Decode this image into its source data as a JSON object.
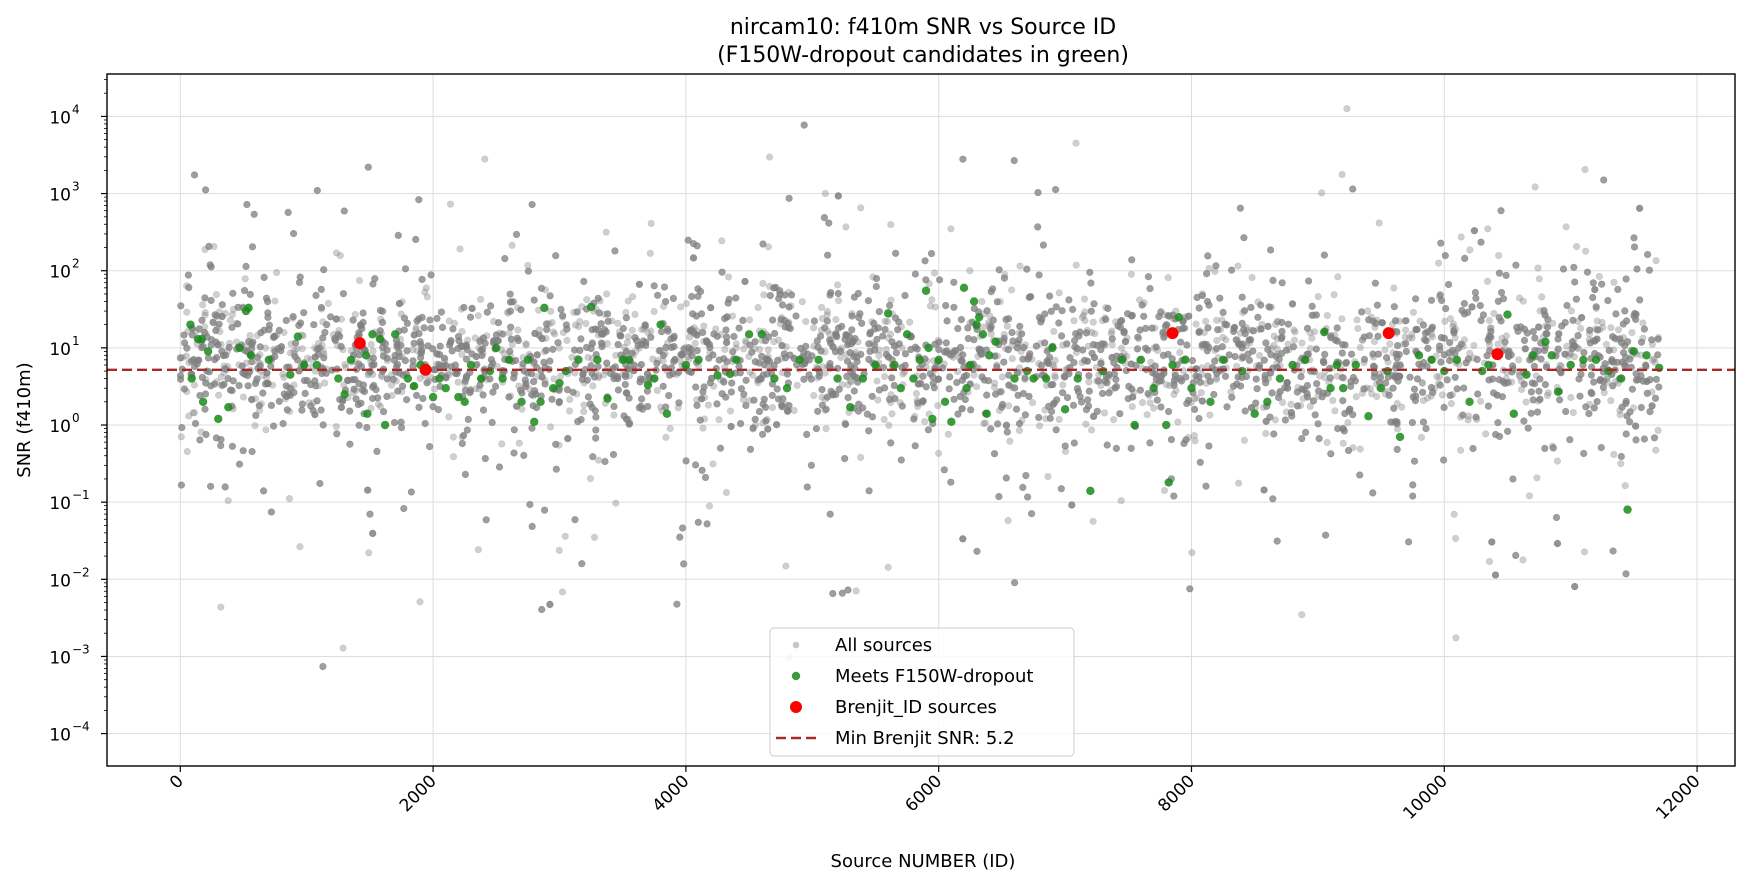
{
  "chart_data": {
    "type": "scatter",
    "title": "nircam10: f410m SNR vs Source ID",
    "subtitle": "(F150W-dropout candidates in green)",
    "xlabel": "Source NUMBER (ID)",
    "ylabel": "SNR (f410m)",
    "xlim": [
      -580,
      12300
    ],
    "ylim_log10": [
      -4.42,
      4.55
    ],
    "yscale": "log",
    "grid": true,
    "legend_position": "bottom-center",
    "x_ticks": [
      0,
      2000,
      4000,
      6000,
      8000,
      10000,
      12000
    ],
    "x_tick_labels": [
      "0",
      "2000",
      "4000",
      "6000",
      "8000",
      "10000",
      "12000"
    ],
    "y_ticks_log10": [
      -4,
      -3,
      -2,
      -1,
      0,
      1,
      2,
      3,
      4
    ],
    "y_tick_labels": [
      "10",
      "10",
      "10",
      "10",
      "10",
      "10",
      "10",
      "10",
      "10"
    ],
    "y_tick_exponents": [
      "−4",
      "−3",
      "−2",
      "−1",
      "0",
      "1",
      "2",
      "3",
      "4"
    ],
    "series": [
      {
        "name": "All sources",
        "color": "#808080",
        "description_only_density": "approx. 11700 sources spanning IDs 0–11700, SNR mostly 1–100 (log-normal around ~8)",
        "x_range": [
          0,
          11700
        ],
        "n_points_approx": 11700
      },
      {
        "name": "Meets F150W-dropout",
        "color": "#1a8a1a",
        "points": [
          [
            80,
            20
          ],
          [
            90,
            4
          ],
          [
            140,
            13
          ],
          [
            170,
            13
          ],
          [
            180,
            2
          ],
          [
            220,
            9
          ],
          [
            300,
            1.2
          ],
          [
            380,
            1.7
          ],
          [
            470,
            10
          ],
          [
            520,
            30
          ],
          [
            540,
            33
          ],
          [
            560,
            8
          ],
          [
            700,
            7
          ],
          [
            870,
            4.5
          ],
          [
            930,
            14
          ],
          [
            980,
            6
          ],
          [
            1080,
            6
          ],
          [
            1250,
            4
          ],
          [
            1300,
            2.5
          ],
          [
            1350,
            7
          ],
          [
            1470,
            8
          ],
          [
            1480,
            1.4
          ],
          [
            1520,
            15
          ],
          [
            1580,
            13
          ],
          [
            1620,
            1
          ],
          [
            1700,
            15
          ],
          [
            1800,
            4
          ],
          [
            1850,
            3.2
          ],
          [
            1900,
            6
          ],
          [
            2000,
            2.3
          ],
          [
            2050,
            4
          ],
          [
            2100,
            3
          ],
          [
            2200,
            2.3
          ],
          [
            2250,
            2
          ],
          [
            2300,
            6
          ],
          [
            2380,
            4
          ],
          [
            2450,
            5
          ],
          [
            2500,
            10
          ],
          [
            2550,
            4
          ],
          [
            2600,
            7
          ],
          [
            2700,
            2
          ],
          [
            2750,
            7
          ],
          [
            2800,
            1.1
          ],
          [
            2850,
            2
          ],
          [
            2880,
            33
          ],
          [
            2950,
            3
          ],
          [
            3000,
            3.5
          ],
          [
            3050,
            5
          ],
          [
            3150,
            7
          ],
          [
            3250,
            34
          ],
          [
            3300,
            7
          ],
          [
            3380,
            2.2
          ],
          [
            3500,
            7
          ],
          [
            3550,
            7
          ],
          [
            3700,
            3.3
          ],
          [
            3750,
            4
          ],
          [
            3800,
            20
          ],
          [
            3850,
            1.4
          ],
          [
            4000,
            6
          ],
          [
            4100,
            7
          ],
          [
            4250,
            4.4
          ],
          [
            4350,
            4.6
          ],
          [
            4400,
            7
          ],
          [
            4500,
            15
          ],
          [
            4600,
            15
          ],
          [
            4700,
            4
          ],
          [
            4800,
            3
          ],
          [
            4900,
            7
          ],
          [
            5050,
            7
          ],
          [
            5200,
            4
          ],
          [
            5300,
            1.7
          ],
          [
            5400,
            4
          ],
          [
            5500,
            6
          ],
          [
            5600,
            28
          ],
          [
            5650,
            6
          ],
          [
            5700,
            3
          ],
          [
            5750,
            15
          ],
          [
            5800,
            4
          ],
          [
            5850,
            7
          ],
          [
            5900,
            55
          ],
          [
            5920,
            10
          ],
          [
            5950,
            1.2
          ],
          [
            6000,
            7
          ],
          [
            6050,
            2
          ],
          [
            6100,
            1.1
          ],
          [
            6200,
            60
          ],
          [
            6220,
            3
          ],
          [
            6250,
            6
          ],
          [
            6280,
            40
          ],
          [
            6300,
            20
          ],
          [
            6320,
            25
          ],
          [
            6350,
            15
          ],
          [
            6380,
            1.4
          ],
          [
            6400,
            8
          ],
          [
            6450,
            12
          ],
          [
            6600,
            4
          ],
          [
            6700,
            5
          ],
          [
            6750,
            4
          ],
          [
            6850,
            4
          ],
          [
            6900,
            10
          ],
          [
            7000,
            1.6
          ],
          [
            7100,
            4
          ],
          [
            7200,
            0.14
          ],
          [
            7300,
            5
          ],
          [
            7450,
            7
          ],
          [
            7550,
            1
          ],
          [
            7600,
            7
          ],
          [
            7700,
            3
          ],
          [
            7800,
            1
          ],
          [
            7820,
            0.18
          ],
          [
            7850,
            6
          ],
          [
            7900,
            25
          ],
          [
            7950,
            7
          ],
          [
            8000,
            3
          ],
          [
            8150,
            2
          ],
          [
            8250,
            7
          ],
          [
            8400,
            5
          ],
          [
            8500,
            1.4
          ],
          [
            8600,
            2
          ],
          [
            8700,
            4
          ],
          [
            8800,
            6
          ],
          [
            8900,
            7
          ],
          [
            9050,
            16
          ],
          [
            9100,
            3
          ],
          [
            9150,
            6
          ],
          [
            9200,
            3
          ],
          [
            9300,
            6
          ],
          [
            9400,
            1.3
          ],
          [
            9500,
            3
          ],
          [
            9550,
            5
          ],
          [
            9650,
            0.7
          ],
          [
            9800,
            8
          ],
          [
            9900,
            7
          ],
          [
            10000,
            5
          ],
          [
            10100,
            7
          ],
          [
            10200,
            2
          ],
          [
            10300,
            5
          ],
          [
            10350,
            6
          ],
          [
            10500,
            27
          ],
          [
            10550,
            1.4
          ],
          [
            10650,
            4.5
          ],
          [
            10700,
            8
          ],
          [
            10800,
            12
          ],
          [
            10850,
            8
          ],
          [
            10900,
            2.7
          ],
          [
            11000,
            6
          ],
          [
            11100,
            7
          ],
          [
            11200,
            7
          ],
          [
            11300,
            5
          ],
          [
            11400,
            4
          ],
          [
            11450,
            0.08
          ],
          [
            11500,
            9
          ],
          [
            11600,
            8
          ],
          [
            11700,
            5.5
          ]
        ]
      },
      {
        "name": "Brenjit_ID sources",
        "color": "#ff0000",
        "points": [
          [
            1420,
            11.5
          ],
          [
            1940,
            5.2
          ],
          [
            7850,
            15.5
          ],
          [
            9560,
            15.5
          ],
          [
            10420,
            8.3
          ]
        ]
      },
      {
        "name": "Min Brenjit SNR: 5.2",
        "color": "#a52a2a",
        "line_type": "horizontal-dashed",
        "y": 5.2
      }
    ]
  }
}
